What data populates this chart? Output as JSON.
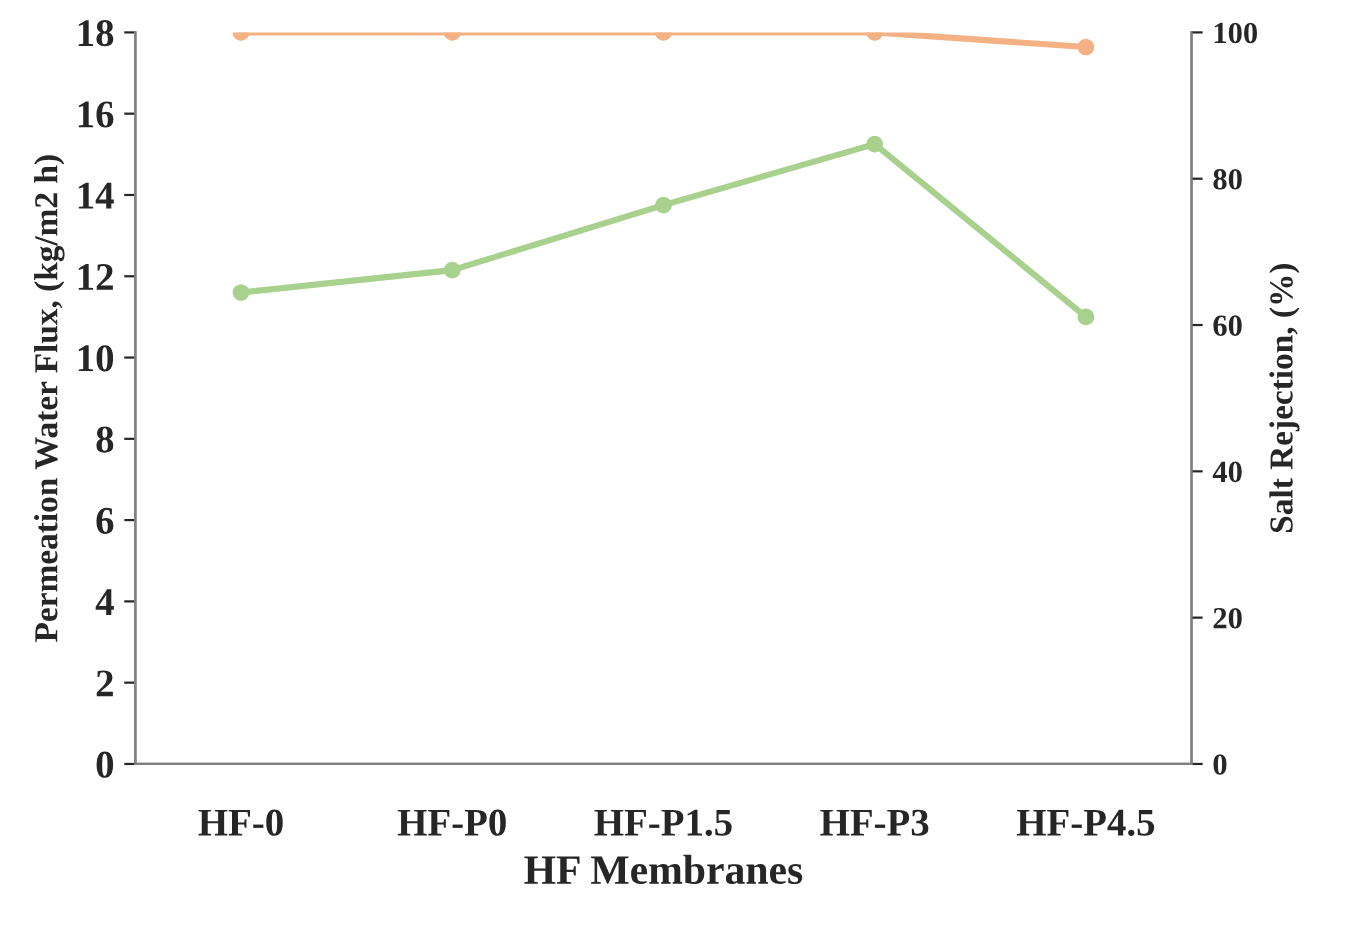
{
  "chart_data": {
    "type": "line",
    "categories": [
      "HF-0",
      "HF-P0",
      "HF-P1.5",
      "HF-P3",
      "HF-P4.5"
    ],
    "xlabel": "HF Membranes",
    "ylabel": "Permeation Water Flux, (kg/m2 h)",
    "y2label": "Salt Rejection, (%)",
    "ylim": [
      0,
      18
    ],
    "yticks": [
      0,
      2,
      4,
      6,
      8,
      10,
      12,
      14,
      16,
      18
    ],
    "y2lim": [
      0,
      100
    ],
    "y2ticks": [
      0,
      20,
      40,
      60,
      80,
      100
    ],
    "marker": "circle",
    "grid": false,
    "legend": false,
    "series": [
      {
        "color": "#a9d18e",
        "values": [
          11.6,
          12.15,
          13.75,
          15.25,
          11.0
        ]
      },
      {
        "color": "#f4b183",
        "axis": "y2",
        "values": [
          100,
          100,
          100,
          100,
          98
        ]
      }
    ]
  }
}
